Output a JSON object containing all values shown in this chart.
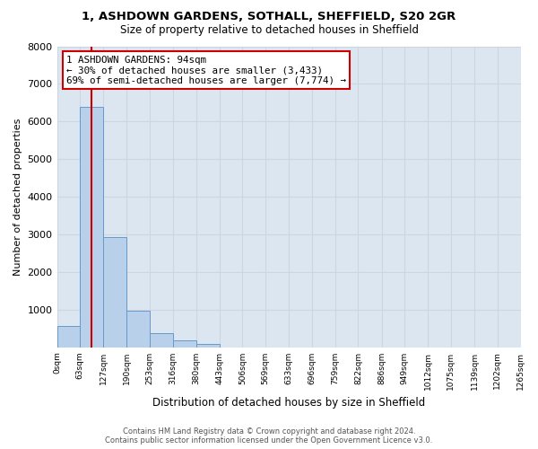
{
  "title1": "1, ASHDOWN GARDENS, SOTHALL, SHEFFIELD, S20 2GR",
  "title2": "Size of property relative to detached houses in Sheffield",
  "xlabel": "Distribution of detached houses by size in Sheffield",
  "ylabel": "Number of detached properties",
  "bar_edges": [
    0,
    63,
    127,
    190,
    253,
    316,
    380,
    443,
    506,
    569,
    633,
    696,
    759,
    822,
    886,
    949,
    1012,
    1075,
    1139,
    1202,
    1265
  ],
  "bar_heights": [
    560,
    6400,
    2920,
    960,
    380,
    175,
    95,
    0,
    0,
    0,
    0,
    0,
    0,
    0,
    0,
    0,
    0,
    0,
    0,
    0
  ],
  "bar_color": "#b8d0ea",
  "bar_edgecolor": "#6699cc",
  "property_line_x": 94,
  "property_line_color": "#cc0000",
  "annotation_title": "1 ASHDOWN GARDENS: 94sqm",
  "annotation_line1": "← 30% of detached houses are smaller (3,433)",
  "annotation_line2": "69% of semi-detached houses are larger (7,774) →",
  "annotation_box_facecolor": "#ffffff",
  "annotation_box_edgecolor": "#cc0000",
  "ylim": [
    0,
    8000
  ],
  "yticks": [
    0,
    1000,
    2000,
    3000,
    4000,
    5000,
    6000,
    7000,
    8000
  ],
  "xtick_labels": [
    "0sqm",
    "63sqm",
    "127sqm",
    "190sqm",
    "253sqm",
    "316sqm",
    "380sqm",
    "443sqm",
    "506sqm",
    "569sqm",
    "633sqm",
    "696sqm",
    "759sqm",
    "822sqm",
    "886sqm",
    "949sqm",
    "1012sqm",
    "1075sqm",
    "1139sqm",
    "1202sqm",
    "1265sqm"
  ],
  "grid_color": "#ccd5e0",
  "plot_bg_color": "#dce6f0",
  "fig_bg_color": "#ffffff",
  "footer_line1": "Contains HM Land Registry data © Crown copyright and database right 2024.",
  "footer_line2": "Contains public sector information licensed under the Open Government Licence v3.0."
}
